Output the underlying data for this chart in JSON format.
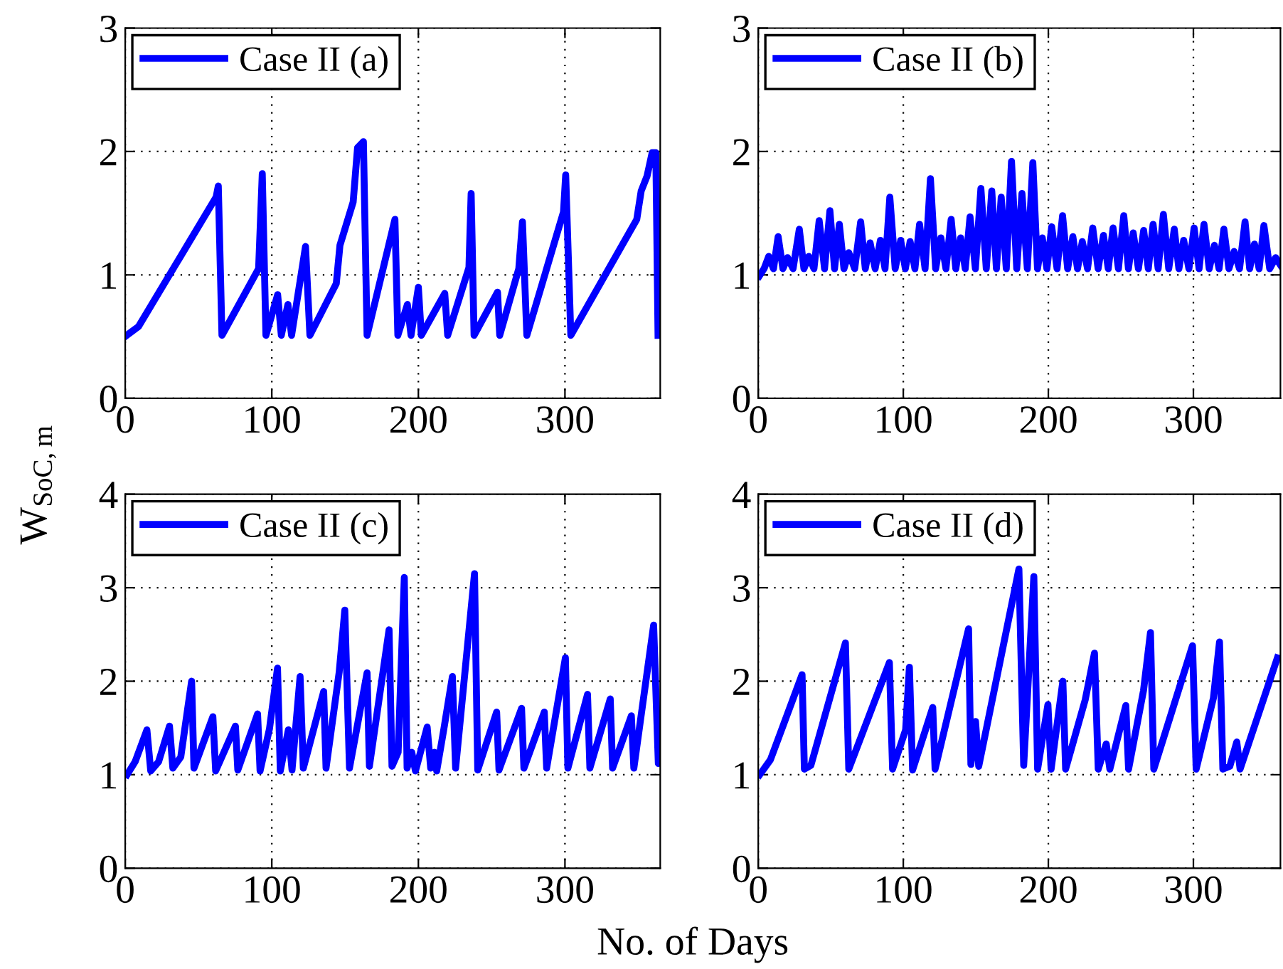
{
  "chart_data": [
    {
      "type": "line",
      "ylabel": "W$_{SoC,m}$",
      "xlim": [
        0,
        365
      ],
      "ylim": [
        0,
        3
      ],
      "xticks": [
        0,
        100,
        200,
        300
      ],
      "yticks": [
        0,
        1,
        2,
        3
      ],
      "grid": true,
      "legend": "top left",
      "marker": "none",
      "line_style": "solid",
      "series": [
        {
          "name": "Case II (a)",
          "color": "#0000ff",
          "x": [
            1,
            9,
            62,
            63.5,
            66,
            91,
            93.5,
            96,
            104,
            106.5,
            111,
            113.5,
            123,
            126,
            144,
            146.5,
            155.5,
            158.5,
            162.5,
            165,
            184,
            186,
            192.5,
            195,
            200,
            202,
            218,
            220,
            234.5,
            236,
            238,
            254,
            255.5,
            268.5,
            271,
            274,
            299,
            300.5,
            304,
            349,
            352,
            356,
            359.5,
            362,
            363.5
          ],
          "values": [
            0.51,
            0.58,
            1.63,
            1.72,
            0.51,
            1.05,
            1.82,
            0.51,
            0.84,
            0.51,
            0.76,
            0.51,
            1.23,
            0.51,
            0.93,
            1.24,
            1.59,
            2.03,
            2.08,
            0.51,
            1.45,
            0.51,
            0.76,
            0.51,
            0.9,
            0.51,
            0.85,
            0.51,
            1.06,
            1.66,
            0.51,
            0.86,
            0.51,
            1.05,
            1.43,
            0.51,
            1.51,
            1.81,
            0.51,
            1.45,
            1.68,
            1.8,
            1.99,
            1.99,
            0.51
          ]
        }
      ]
    },
    {
      "type": "line",
      "xlim": [
        0,
        360
      ],
      "ylim": [
        0,
        3
      ],
      "xticks": [
        0,
        100,
        200,
        300
      ],
      "yticks": [
        0,
        1,
        2,
        3
      ],
      "grid": true,
      "legend": "top left",
      "marker": "none",
      "line_style": "solid",
      "series": [
        {
          "name": "Case II (b)",
          "color": "#0000ff",
          "x": [
            0.7,
            4,
            7.2,
            10.5,
            13.7,
            17,
            20.2,
            24,
            28.3,
            31.5,
            34.8,
            38.4,
            42,
            45.7,
            49.4,
            52.6,
            55.9,
            59.1,
            62.4,
            66.5,
            70.6,
            73.8,
            77.1,
            80.6,
            84.2,
            87.4,
            90.7,
            94.4,
            98.2,
            101.4,
            104.7,
            108,
            111.2,
            115,
            118.7,
            122.3,
            125.9,
            129.4,
            133,
            136.2,
            139.5,
            142.7,
            146,
            149.7,
            153.5,
            157.2,
            161,
            164.2,
            167.5,
            171,
            174.6,
            178.2,
            181.8,
            185.5,
            189.3,
            192.5,
            195.8,
            199,
            202.3,
            206,
            209.8,
            213.3,
            216.9,
            220.1,
            223.4,
            227,
            230.6,
            234.3,
            238,
            241.3,
            244.6,
            248.3,
            252,
            255.2,
            258.5,
            262.1,
            265.7,
            268.9,
            272.2,
            275.7,
            279.3,
            283,
            286.8,
            290,
            293.3,
            296.9,
            300.5,
            303.9,
            307.3,
            310.9,
            314.5,
            317.7,
            321,
            324.5,
            328.1,
            331.8,
            335.6,
            338.8,
            342.1,
            345.3,
            348.6,
            352.6,
            356.7,
            360
          ],
          "values": [
            0.99,
            1.05,
            1.15,
            1.05,
            1.31,
            1.05,
            1.14,
            1.05,
            1.37,
            1.05,
            1.15,
            1.05,
            1.44,
            1.05,
            1.52,
            1.05,
            1.41,
            1.05,
            1.18,
            1.05,
            1.43,
            1.05,
            1.26,
            1.05,
            1.28,
            1.05,
            1.63,
            1.05,
            1.28,
            1.05,
            1.27,
            1.05,
            1.41,
            1.05,
            1.78,
            1.05,
            1.3,
            1.05,
            1.45,
            1.05,
            1.3,
            1.05,
            1.47,
            1.05,
            1.7,
            1.05,
            1.68,
            1.05,
            1.63,
            1.05,
            1.92,
            1.05,
            1.66,
            1.05,
            1.91,
            1.05,
            1.3,
            1.05,
            1.39,
            1.05,
            1.48,
            1.05,
            1.31,
            1.05,
            1.27,
            1.05,
            1.38,
            1.05,
            1.32,
            1.05,
            1.38,
            1.05,
            1.48,
            1.05,
            1.34,
            1.05,
            1.36,
            1.05,
            1.41,
            1.05,
            1.49,
            1.05,
            1.37,
            1.05,
            1.28,
            1.05,
            1.38,
            1.05,
            1.41,
            1.05,
            1.24,
            1.05,
            1.37,
            1.05,
            1.19,
            1.05,
            1.43,
            1.05,
            1.25,
            1.05,
            1.4,
            1.05,
            1.14,
            1.08
          ]
        }
      ]
    },
    {
      "type": "line",
      "xlabel": "No. of Days",
      "xlim": [
        0,
        365
      ],
      "ylim": [
        0,
        4
      ],
      "xticks": [
        0,
        100,
        200,
        300
      ],
      "yticks": [
        0,
        1,
        2,
        3,
        4
      ],
      "grid": true,
      "legend": "top left",
      "marker": "none",
      "line_style": "solid",
      "series": [
        {
          "name": "Case II (c)",
          "color": "#0000ff",
          "x": [
            1.3,
            6.8,
            14.8,
            17.4,
            22.8,
            30.2,
            32.5,
            37.9,
            45.3,
            46.9,
            59.8,
            61.7,
            75.2,
            76.8,
            90.3,
            92,
            98.4,
            103.9,
            105.8,
            111.3,
            113.8,
            119.3,
            121.5,
            135.4,
            137,
            146,
            149.8,
            153,
            165,
            166.6,
            180,
            182,
            186.2,
            190.4,
            192.3,
            195.5,
            198,
            206,
            208.4,
            211,
            212.5,
            217.4,
            223.2,
            225.4,
            238.3,
            240.5,
            253.4,
            255,
            270.4,
            272,
            285.9,
            287.5,
            300.3,
            302,
            315.4,
            317,
            330.9,
            332.5,
            345.3,
            347,
            360.5,
            363.7,
            365
          ],
          "values": [
            1.0,
            1.14,
            1.48,
            1.04,
            1.14,
            1.52,
            1.07,
            1.19,
            2.0,
            1.07,
            1.62,
            1.04,
            1.52,
            1.05,
            1.65,
            1.04,
            1.49,
            2.14,
            1.04,
            1.48,
            1.05,
            2.05,
            1.07,
            1.89,
            1.07,
            2.1,
            2.76,
            1.07,
            2.09,
            1.09,
            2.55,
            1.09,
            1.24,
            3.11,
            1.07,
            1.24,
            1.04,
            1.51,
            1.07,
            1.24,
            1.04,
            1.49,
            2.05,
            1.07,
            3.15,
            1.05,
            1.67,
            1.05,
            1.71,
            1.07,
            1.67,
            1.07,
            2.25,
            1.07,
            1.86,
            1.07,
            1.81,
            1.07,
            1.63,
            1.07,
            2.6,
            1.12,
            1.14
          ]
        }
      ]
    },
    {
      "type": "line",
      "xlim": [
        0,
        360
      ],
      "ylim": [
        0,
        4
      ],
      "xticks": [
        0,
        100,
        200,
        300
      ],
      "yticks": [
        0,
        1,
        2,
        3,
        4
      ],
      "grid": true,
      "legend": "top left",
      "marker": "none",
      "line_style": "solid",
      "series": [
        {
          "name": "Case II (d)",
          "color": "#0000ff",
          "x": [
            1,
            8.4,
            30.2,
            31.8,
            36.3,
            60.1,
            62.4,
            90.4,
            92.6,
            101.6,
            104.2,
            106.4,
            120.3,
            121.9,
            145,
            146.6,
            149.8,
            152,
            179.7,
            183,
            190,
            192.6,
            199.7,
            201.9,
            210,
            211.9,
            225.4,
            231.8,
            234.4,
            239.9,
            242.4,
            253.4,
            255.3,
            265.6,
            270.4,
            272.7,
            299.4,
            301.9,
            313.8,
            318,
            320.3,
            325.1,
            329.9,
            332.2,
            357.9
          ],
          "values": [
            1.0,
            1.16,
            2.07,
            1.06,
            1.1,
            2.41,
            1.06,
            2.2,
            1.06,
            1.48,
            2.15,
            1.05,
            1.72,
            1.06,
            2.56,
            1.11,
            1.57,
            1.09,
            3.2,
            1.1,
            3.12,
            1.06,
            1.75,
            1.06,
            2.0,
            1.06,
            1.8,
            2.3,
            1.06,
            1.33,
            1.06,
            1.74,
            1.06,
            1.9,
            2.52,
            1.06,
            2.38,
            1.06,
            1.82,
            2.42,
            1.06,
            1.09,
            1.35,
            1.06,
            2.25
          ]
        }
      ]
    }
  ]
}
